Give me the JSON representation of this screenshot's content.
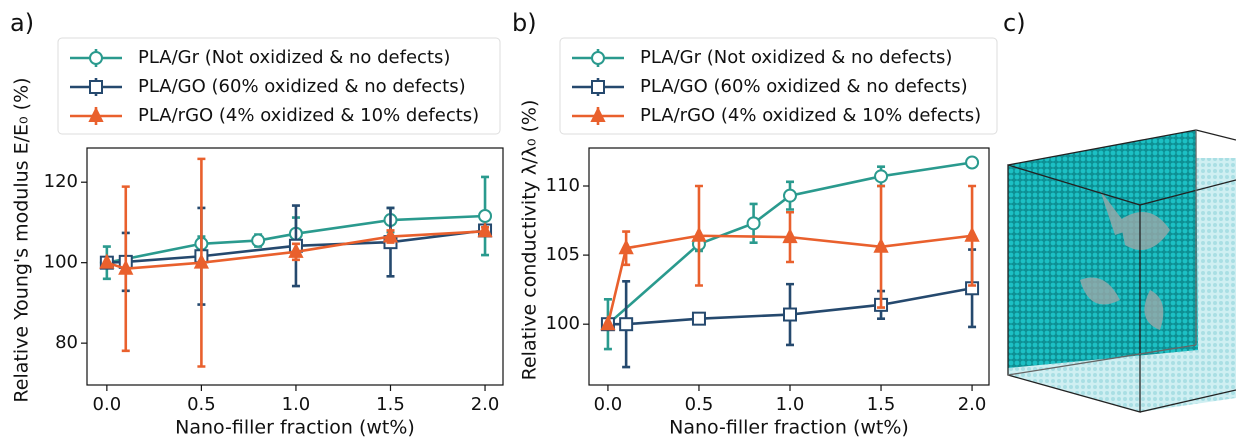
{
  "chart_data": [
    {
      "type": "line",
      "label": "a)",
      "xlabel": "Nano-filler fraction (wt%)",
      "ylabel": "Relative Young's modulus E/E₀ (%)",
      "xlim": [
        -0.105,
        2.095
      ],
      "ylim": [
        69.6,
        128.5
      ],
      "xticks": [
        {
          "value": 0,
          "label": "0.0"
        },
        0.5,
        {
          "value": 1,
          "label": "1.0"
        },
        1.5,
        {
          "value": 2,
          "label": "2.0"
        }
      ],
      "yticks": [
        80,
        100,
        120
      ],
      "legend": "upper left",
      "series": [
        {
          "name": "PLA/Gr (Not oxidized & no defects)",
          "color": "#2a9a8e",
          "marker": "o",
          "x": [
            0,
            0.5,
            0.8,
            1.0,
            1.5,
            2.0
          ],
          "values": [
            100,
            104.7,
            105.5,
            107.2,
            110.6,
            111.6
          ],
          "errors": [
            4,
            1.8,
            1.5,
            4,
            3,
            9.7
          ]
        },
        {
          "name": "PLA/GO (60% oxidized & no defects)",
          "color": "#25496e",
          "marker": "s",
          "x": [
            0,
            0.1,
            0.5,
            1.0,
            1.5,
            2.0
          ],
          "values": [
            100,
            100.2,
            101.6,
            104.2,
            105.1,
            108.0
          ],
          "errors": [
            0,
            7.2,
            12,
            10,
            8.5,
            0.5
          ]
        },
        {
          "name": "PLA/rGO (4% oxidized & 10% defects)",
          "color": "#e9602d",
          "marker": "^",
          "x": [
            0,
            0.1,
            0.5,
            1.0,
            1.5,
            2.0
          ],
          "values": [
            100,
            98.5,
            100.0,
            102.7,
            106.5,
            107.8
          ],
          "errors": [
            0,
            20.4,
            25.8,
            2,
            1.5,
            1
          ]
        }
      ]
    },
    {
      "type": "line",
      "label": "b)",
      "xlabel": "Nano-filler fraction (wt%)",
      "ylabel": "Relative conductivity λ/λ₀ (%)",
      "xlim": [
        -0.104,
        2.093
      ],
      "ylim": [
        95.6,
        112.75
      ],
      "xticks": [
        {
          "value": 0,
          "label": "0.0"
        },
        0.5,
        {
          "value": 1,
          "label": "1.0"
        },
        1.5,
        {
          "value": 2,
          "label": "2.0"
        }
      ],
      "yticks": [
        100,
        105,
        110
      ],
      "legend": "upper left",
      "series": [
        {
          "name": "PLA/Gr (Not oxidized & no defects)",
          "color": "#2a9a8e",
          "marker": "o",
          "x": [
            0,
            0.5,
            0.8,
            1.0,
            1.5,
            2.0
          ],
          "values": [
            100,
            105.8,
            107.3,
            109.3,
            110.7,
            111.7
          ],
          "errors": [
            1.8,
            0.5,
            1.4,
            1,
            0.7,
            0.2
          ]
        },
        {
          "name": "PLA/GO (60% oxidized & no defects)",
          "color": "#25496e",
          "marker": "s",
          "x": [
            0,
            0.1,
            0.5,
            1.0,
            1.5,
            2.0
          ],
          "values": [
            100,
            100,
            100.4,
            100.7,
            101.4,
            102.6
          ],
          "errors": [
            0,
            3.1,
            0.2,
            2.2,
            1,
            2.8
          ]
        },
        {
          "name": "PLA/rGO (4% oxidized & 10% defects)",
          "color": "#e9602d",
          "marker": "^",
          "x": [
            0,
            0.1,
            0.5,
            1.0,
            1.5,
            2.0
          ],
          "values": [
            100,
            105.5,
            106.4,
            106.3,
            105.6,
            106.4
          ],
          "errors": [
            0,
            1.2,
            3.6,
            1.8,
            4.4,
            3.6
          ]
        }
      ]
    }
  ],
  "image_panel": {
    "label": "c)"
  }
}
